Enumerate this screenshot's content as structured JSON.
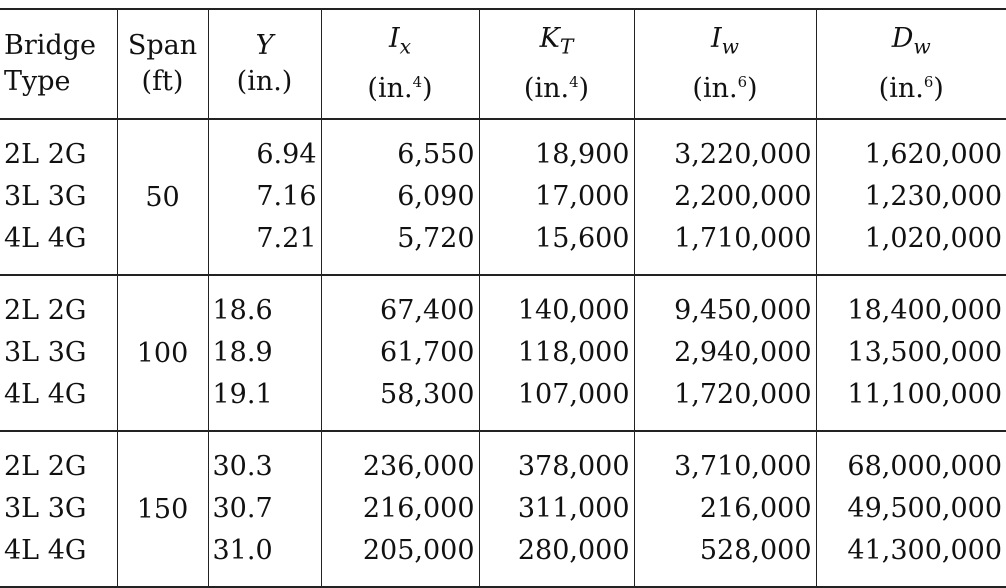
{
  "headers": [
    {
      "name": "Bridge",
      "unit": "Type"
    },
    {
      "name": "Span",
      "unit": "(ft)"
    },
    {
      "symbol": "Y",
      "sub": "",
      "unit": "(in.)",
      "sup": ""
    },
    {
      "symbol": "I",
      "sub": "x",
      "unit": "(in.",
      "sup": "4"
    },
    {
      "symbol": "K",
      "sub": "T",
      "unit": "(in.",
      "sup": "4"
    },
    {
      "symbol": "I",
      "sub": "w",
      "unit": "(in.",
      "sup": "6"
    },
    {
      "symbol": "D",
      "sub": "w",
      "unit": "(in.",
      "sup": "6"
    }
  ],
  "groups": [
    {
      "span": "50",
      "types": [
        "2L 2G",
        "3L 3G",
        "4L 4G"
      ],
      "Y": [
        "6.94",
        "7.16",
        "7.21"
      ],
      "Ix": [
        "6,550",
        "6,090",
        "5,720"
      ],
      "KT": [
        "18,900",
        "17,000",
        "15,600"
      ],
      "Iw": [
        "3,220,000",
        "2,200,000",
        "1,710,000"
      ],
      "Dw": [
        "1,620,000",
        "1,230,000",
        "1,020,000"
      ]
    },
    {
      "span": "100",
      "types": [
        "2L 2G",
        "3L 3G",
        "4L 4G"
      ],
      "Y": [
        "18.6",
        "18.9",
        "19.1"
      ],
      "Ix": [
        "67,400",
        "61,700",
        "58,300"
      ],
      "KT": [
        "140,000",
        "118,000",
        "107,000"
      ],
      "Iw": [
        "9,450,000",
        "2,940,000",
        "1,720,000"
      ],
      "Dw": [
        "18,400,000",
        "13,500,000",
        "11,100,000"
      ]
    },
    {
      "span": "150",
      "types": [
        "2L 2G",
        "3L 3G",
        "4L 4G"
      ],
      "Y": [
        "30.3",
        "30.7",
        "31.0"
      ],
      "Ix": [
        "236,000",
        "216,000",
        "205,000"
      ],
      "KT": [
        "378,000",
        "311,000",
        "280,000"
      ],
      "Iw": [
        "3,710,000",
        "216,000",
        "528,000"
      ],
      "Dw": [
        "68,000,000",
        "49,500,000",
        "41,300,000"
      ]
    }
  ]
}
